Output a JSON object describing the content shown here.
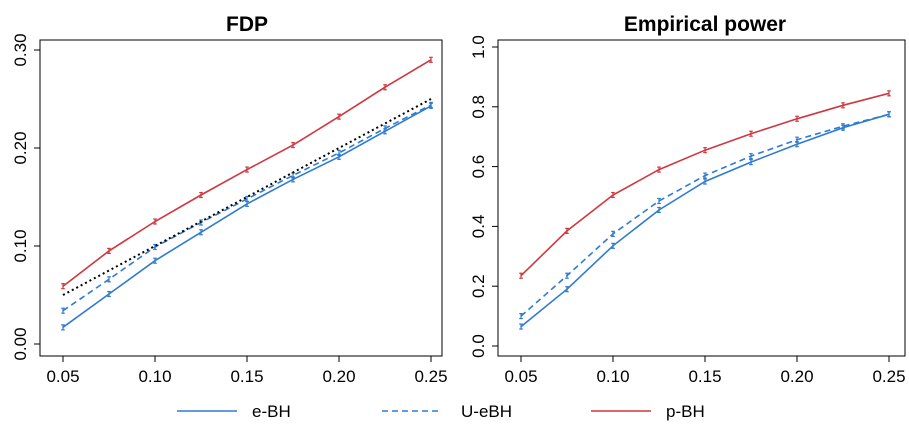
{
  "colors": {
    "e_BH": "#2f7bd1",
    "U_eBH": "#2f7bd1",
    "p_BH": "#d0373e",
    "reference": "#000000"
  },
  "legend": {
    "placement": "bottom",
    "items": [
      {
        "label": "e-BH",
        "color": "#2f7bd1",
        "style": "solid"
      },
      {
        "label": "U-eBH",
        "color": "#2f7bd1",
        "style": "dashed"
      },
      {
        "label": "p-BH",
        "color": "#d0373e",
        "style": "solid"
      }
    ]
  },
  "chart_data": [
    {
      "type": "line",
      "title": "FDP",
      "x": [
        0.05,
        0.075,
        0.1,
        0.125,
        0.15,
        0.175,
        0.2,
        0.225,
        0.25
      ],
      "xlim": [
        0.05,
        0.25
      ],
      "ylim": [
        0,
        0.3
      ],
      "xticks": [
        "0.05",
        "0.10",
        "0.15",
        "0.20",
        "0.25"
      ],
      "yticks": [
        "0.00",
        "0.10",
        "0.20",
        "0.30"
      ],
      "grid": false,
      "series": [
        {
          "name": "e-BH",
          "style": "solid",
          "color": "#2f7bd1",
          "values": [
            0.017,
            0.051,
            0.085,
            0.114,
            0.143,
            0.168,
            0.191,
            0.217,
            0.243
          ]
        },
        {
          "name": "U-eBH",
          "style": "dashed",
          "color": "#2f7bd1",
          "values": [
            0.034,
            0.066,
            0.099,
            0.124,
            0.148,
            0.172,
            0.195,
            0.22,
            0.244
          ]
        },
        {
          "name": "p-BH",
          "style": "solid",
          "color": "#d0373e",
          "values": [
            0.059,
            0.095,
            0.125,
            0.152,
            0.178,
            0.203,
            0.232,
            0.262,
            0.29
          ]
        },
        {
          "style": "dotted",
          "color": "#000000",
          "values": [
            0.05,
            0.075,
            0.1,
            0.125,
            0.15,
            0.175,
            0.2,
            0.225,
            0.25
          ]
        }
      ]
    },
    {
      "type": "line",
      "title": "Empirical power",
      "x": [
        0.05,
        0.075,
        0.1,
        0.125,
        0.15,
        0.175,
        0.2,
        0.225,
        0.25
      ],
      "xlim": [
        0.05,
        0.25
      ],
      "ylim": [
        0,
        1
      ],
      "xticks": [
        "0.05",
        "0.10",
        "0.15",
        "0.20",
        "0.25"
      ],
      "yticks": [
        "0.0",
        "0.2",
        "0.4",
        "0.6",
        "0.8",
        "1.0"
      ],
      "grid": false,
      "series": [
        {
          "name": "e-BH",
          "style": "solid",
          "color": "#2f7bd1",
          "values": [
            0.065,
            0.19,
            0.335,
            0.455,
            0.55,
            0.615,
            0.675,
            0.73,
            0.775
          ]
        },
        {
          "name": "U-eBH",
          "style": "dashed",
          "color": "#2f7bd1",
          "values": [
            0.1,
            0.235,
            0.375,
            0.485,
            0.57,
            0.635,
            0.69,
            0.735,
            0.775
          ]
        },
        {
          "name": "p-BH",
          "style": "solid",
          "color": "#d0373e",
          "values": [
            0.235,
            0.385,
            0.505,
            0.59,
            0.655,
            0.71,
            0.76,
            0.805,
            0.845
          ]
        }
      ]
    }
  ]
}
